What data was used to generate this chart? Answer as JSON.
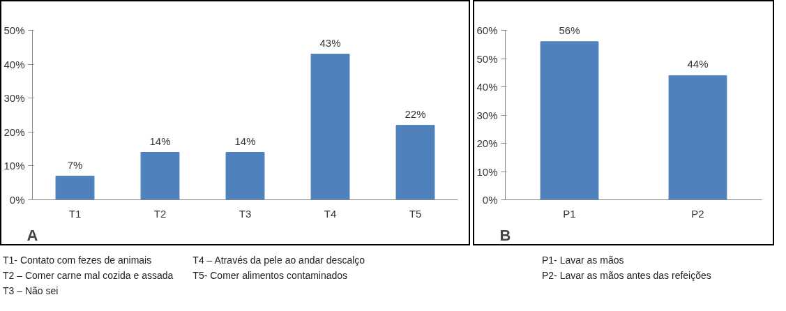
{
  "chart_data": [
    {
      "type": "bar",
      "categories": [
        "T1",
        "T2",
        "T3",
        "T4",
        "T5"
      ],
      "values": [
        7,
        14,
        14,
        43,
        22
      ],
      "color": "#4f81bd",
      "value_labels": [
        "7%",
        "14%",
        "14%",
        "43%",
        "22%"
      ],
      "ylim": [
        0,
        50
      ],
      "yticks": [
        {
          "value": 0,
          "label": "0%"
        },
        {
          "value": 10,
          "label": "10%"
        },
        {
          "value": 20,
          "label": "20%"
        },
        {
          "value": 30,
          "label": "30%"
        },
        {
          "value": 40,
          "label": "40%"
        },
        {
          "value": 50,
          "label": "50%"
        }
      ],
      "grid": false,
      "annotations": [
        "A",
        "T1- Contato com fezes de animais",
        "T2 – Comer carne mal cozida e assada",
        "T3 – Não sei",
        "T4 – Através da pele ao andar descalço",
        "T5- Comer alimentos contaminados"
      ]
    },
    {
      "type": "bar",
      "categories": [
        "P1",
        "P2"
      ],
      "values": [
        56,
        44
      ],
      "color": "#4f81bd",
      "value_labels": [
        "56%",
        "44%"
      ],
      "ylim": [
        0,
        60
      ],
      "yticks": [
        {
          "value": 0,
          "label": "0%"
        },
        {
          "value": 10,
          "label": "10%"
        },
        {
          "value": 20,
          "label": "20%"
        },
        {
          "value": 30,
          "label": "30%"
        },
        {
          "value": 40,
          "label": "40%"
        },
        {
          "value": 50,
          "label": "50%"
        },
        {
          "value": 60,
          "label": "60%"
        }
      ],
      "grid": false,
      "annotations": [
        "B",
        "P1- Lavar  as mãos",
        "P2- Lavar as mãos antes das refeições"
      ]
    }
  ]
}
